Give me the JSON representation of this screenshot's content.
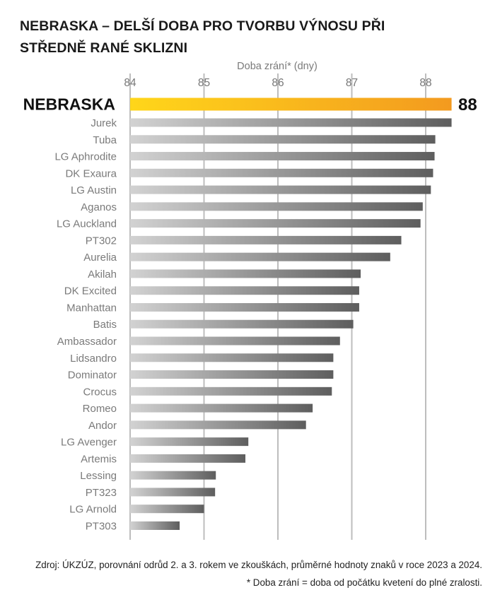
{
  "chart_data": {
    "type": "bar",
    "orientation": "horizontal",
    "title": "NEBRASKA – DELŠÍ DOBA PRO TVORBU VÝNOSU PŘI STŘEDNĚ RANÉ SKLIZNI",
    "title_lines": [
      "NEBRASKA – DELŠÍ DOBA PRO TVORBU VÝNOSU PŘI",
      "STŘEDNĚ RANÉ SKLIZNI"
    ],
    "xlabel": "Doba zrání* (dny)",
    "ylabel": "",
    "xlim": [
      84,
      88.4
    ],
    "ticks": [
      84,
      85,
      86,
      87,
      88
    ],
    "grid": true,
    "highlight": {
      "name": "NEBRASKA",
      "value": 88.35,
      "value_label": "88"
    },
    "categories": [
      "Jurek",
      "Tuba",
      "LG Aphrodite",
      "DK Exaura",
      "LG Austin",
      "Aganos",
      "LG Auckland",
      "PT302",
      "Aurelia",
      "Akilah",
      "DK Excited",
      "Manhattan",
      "Batis",
      "Ambassador",
      "Lidsandro",
      "Dominator",
      "Crocus",
      "Romeo",
      "Andor",
      "LG Avenger",
      "Artemis",
      "Lessing",
      "PT323",
      "LG Arnold",
      "PT303"
    ],
    "values": [
      88.35,
      88.13,
      88.12,
      88.1,
      88.07,
      87.96,
      87.93,
      87.67,
      87.52,
      87.12,
      87.1,
      87.1,
      87.02,
      86.84,
      86.75,
      86.75,
      86.73,
      86.47,
      86.38,
      85.6,
      85.56,
      85.16,
      85.15,
      85.0,
      84.67
    ],
    "colors": {
      "highlight_start": "#FFD61A",
      "highlight_end": "#F39A1F",
      "bar_start": "#D2D2D2",
      "bar_end": "#5E5E5E",
      "grid": "#BDBDBD"
    }
  },
  "footer": {
    "source": "Zdroj: ÚKZÚZ, porovnání odrůd 2. a 3. rokem ve zkouškách, průměrné hodnoty znaků v roce 2023 a 2024.",
    "note": "* Doba zrání = doba od počátku kvetení do plné zralosti."
  }
}
